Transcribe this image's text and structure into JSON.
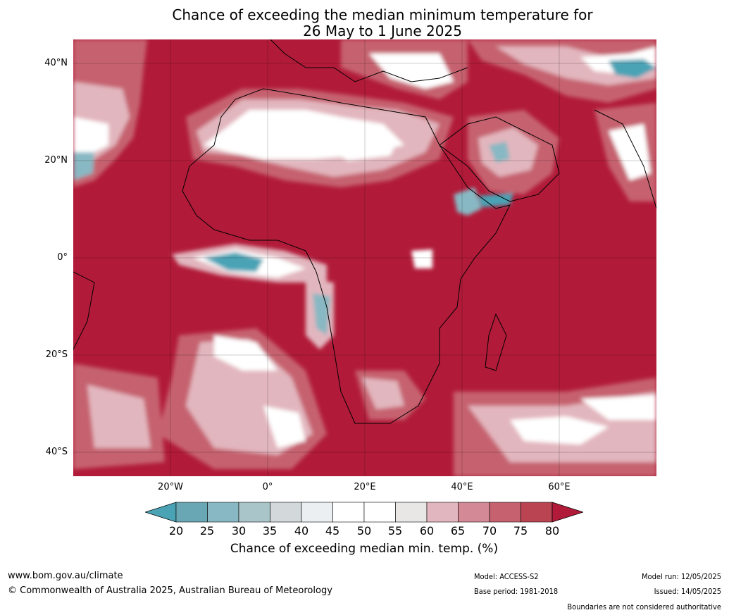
{
  "title_line1": "Chance of exceeding the median minimum temperature for",
  "title_line2": "26 May to 1 June 2025",
  "lat_labels": [
    "40°N",
    "20°N",
    "0°",
    "20°S",
    "40°S"
  ],
  "lon_labels": [
    "20°W",
    "0°",
    "20°E",
    "40°E",
    "60°E"
  ],
  "colorbar": {
    "label": "Chance of exceeding median min. temp. (%)",
    "ticks": [
      "20",
      "25",
      "30",
      "35",
      "40",
      "45",
      "50",
      "55",
      "60",
      "65",
      "70",
      "75",
      "80"
    ],
    "colors": [
      "#4aa3b5",
      "#6aa7b4",
      "#88b8c3",
      "#a9c5c9",
      "#d3d8da",
      "#ebeff1",
      "#ffffff",
      "#ffffff",
      "#e9e6e6",
      "#e2b6be",
      "#d48a96",
      "#c6626f",
      "#bb4453",
      "#b11b39"
    ]
  },
  "colors": {
    "high": "#b11b39",
    "mid": "#c6626f",
    "light": "#e2b6be",
    "neutral": "#ffffff",
    "cool": "#4aa3b5"
  },
  "footer": {
    "website": "www.bom.gov.au/climate",
    "copyright": "© Commonwealth of Australia 2025, Australian Bureau of Meteorology",
    "model": "Model: ACCESS-S2",
    "base_period": "Base period: 1981-2018",
    "model_run": "Model run: 12/05/2025",
    "issued": "Issued: 14/05/2025",
    "disclaimer": "Boundaries are not considered authoritative"
  }
}
